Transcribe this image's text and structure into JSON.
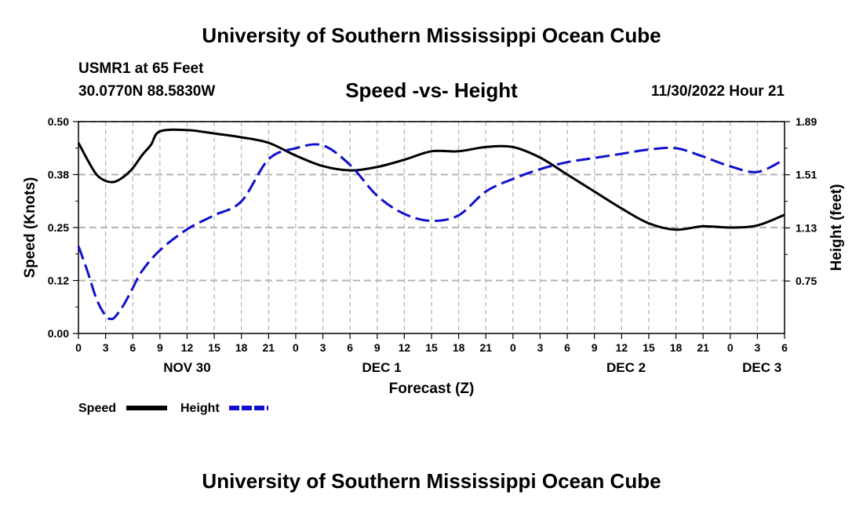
{
  "header": {
    "title": "University of Southern Mississippi Ocean Cube",
    "station": "USMR1 at 65 Feet",
    "coords": "30.0770N  88.5830W",
    "datetime": "11/30/2022 Hour 21"
  },
  "footer": {
    "title": "University of Southern Mississippi Ocean Cube"
  },
  "colors": {
    "speed": "#000000",
    "height": "#1010cc",
    "grid": "#b4b4b4"
  },
  "chart_data": {
    "type": "line",
    "title": "Speed -vs- Height",
    "xlabel": "Forecast (Z)",
    "ylabel": "Speed (Knots)",
    "y2label": "Height (feet)",
    "ylim": [
      0,
      0.5
    ],
    "y2lim": [
      0.375,
      1.89
    ],
    "y_ticks": [
      0.0,
      0.125,
      0.25,
      0.375,
      0.5
    ],
    "y_tick_labels": [
      "0.00",
      "0.12",
      "0.25",
      "0.38",
      "0.50"
    ],
    "y2_ticks": [
      0.75,
      1.13,
      1.51,
      1.89
    ],
    "y2_tick_labels": [
      "0.75",
      "1.13",
      "1.51",
      "1.89"
    ],
    "x_range_hours": [
      0,
      78
    ],
    "x_tick_labels": [
      "0",
      "3",
      "6",
      "9",
      "12",
      "15",
      "18",
      "21",
      "0",
      "3",
      "6",
      "9",
      "12",
      "15",
      "18",
      "21",
      "0",
      "3",
      "6",
      "9",
      "12",
      "15",
      "18",
      "21",
      "0",
      "3",
      "6"
    ],
    "day_labels": [
      {
        "label": "NOV 30",
        "hour": 12
      },
      {
        "label": "DEC 1",
        "hour": 33.5
      },
      {
        "label": "DEC 2",
        "hour": 60.5
      },
      {
        "label": "DEC 3",
        "hour": 75.5
      }
    ],
    "grid": true,
    "legend": {
      "position": "bottom-left"
    },
    "series": [
      {
        "name": "Speed",
        "style": "solid",
        "axis": "left",
        "hours": [
          0,
          1,
          2,
          3,
          4,
          5,
          6,
          7,
          8,
          9,
          12,
          15,
          18,
          21,
          24,
          27,
          30,
          33,
          36,
          39,
          42,
          45,
          48,
          51,
          54,
          57,
          60,
          63,
          66,
          69,
          72,
          75,
          78
        ],
        "values": [
          0.45,
          0.41,
          0.375,
          0.36,
          0.358,
          0.37,
          0.39,
          0.42,
          0.445,
          0.477,
          0.48,
          0.472,
          0.463,
          0.45,
          0.42,
          0.395,
          0.385,
          0.393,
          0.41,
          0.43,
          0.43,
          0.44,
          0.44,
          0.415,
          0.375,
          0.335,
          0.295,
          0.26,
          0.245,
          0.253,
          0.25,
          0.255,
          0.28
        ]
      },
      {
        "name": "Height",
        "style": "dashed",
        "axis": "right",
        "hours": [
          0,
          1,
          2,
          3,
          3.5,
          4,
          5,
          6,
          7,
          9,
          12,
          15,
          18,
          21,
          24,
          27,
          30,
          33,
          36,
          39,
          42,
          45,
          48,
          51,
          54,
          57,
          60,
          63,
          66,
          69,
          72,
          75,
          78
        ],
        "values": [
          1.0,
          0.82,
          0.62,
          0.5,
          0.48,
          0.49,
          0.58,
          0.7,
          0.82,
          0.97,
          1.12,
          1.22,
          1.32,
          1.62,
          1.7,
          1.72,
          1.58,
          1.36,
          1.23,
          1.18,
          1.22,
          1.39,
          1.48,
          1.55,
          1.6,
          1.63,
          1.66,
          1.69,
          1.7,
          1.64,
          1.57,
          1.53,
          1.62
        ]
      }
    ]
  }
}
